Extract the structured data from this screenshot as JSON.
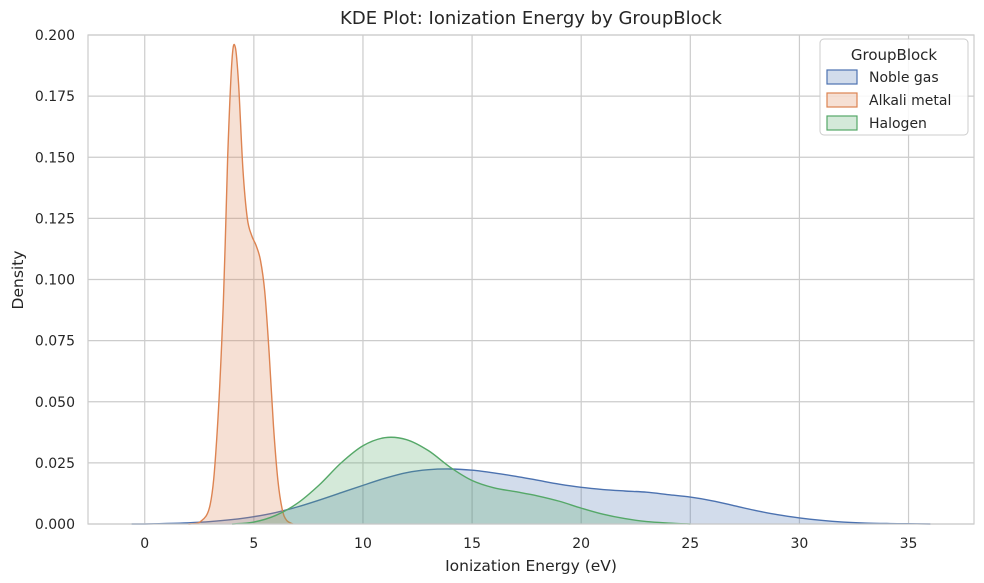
{
  "chart_data": {
    "type": "area",
    "title": "KDE Plot: Ionization Energy by GroupBlock",
    "xlabel": "Ionization Energy (eV)",
    "ylabel": "Density",
    "xlim": [
      -2.6,
      38
    ],
    "ylim": [
      0,
      0.2
    ],
    "xticks": [
      0,
      5,
      10,
      15,
      20,
      25,
      30,
      35
    ],
    "yticks": [
      0,
      0.025,
      0.05,
      0.075,
      0.1,
      0.125,
      0.15,
      0.175,
      0.2
    ],
    "xtick_labels": [
      "0",
      "5",
      "10",
      "15",
      "20",
      "25",
      "30",
      "35"
    ],
    "ytick_labels": [
      "0.000",
      "0.025",
      "0.050",
      "0.075",
      "0.100",
      "0.125",
      "0.150",
      "0.175",
      "0.200"
    ],
    "grid": true,
    "legend": {
      "title": "GroupBlock",
      "placement": "top-right"
    },
    "series": [
      {
        "name": "Noble gas",
        "color": "#4c72b0",
        "x": [
          -0.6,
          0,
          1,
          2,
          3,
          4,
          5,
          6,
          7,
          8,
          9,
          10,
          11,
          12,
          13,
          14,
          15,
          16,
          17,
          18,
          19,
          20,
          21,
          22,
          23,
          24,
          25,
          26,
          27,
          28,
          29,
          30,
          31,
          32,
          33,
          34,
          35,
          36
        ],
        "y": [
          0.0,
          0.0,
          0.0002,
          0.0005,
          0.001,
          0.0018,
          0.003,
          0.0047,
          0.007,
          0.0098,
          0.0128,
          0.0158,
          0.0187,
          0.021,
          0.0222,
          0.0225,
          0.022,
          0.0209,
          0.0195,
          0.0179,
          0.0163,
          0.015,
          0.0141,
          0.0135,
          0.013,
          0.012,
          0.011,
          0.0095,
          0.0075,
          0.0055,
          0.0038,
          0.0025,
          0.0015,
          0.0008,
          0.0004,
          0.0002,
          0.0001,
          0.0
        ]
      },
      {
        "name": "Alkali metal",
        "color": "#dd8452",
        "x": [
          2.0,
          2.5,
          3.0,
          3.3,
          3.6,
          3.8,
          4.0,
          4.15,
          4.3,
          4.5,
          4.7,
          4.9,
          5.1,
          5.3,
          5.5,
          5.7,
          5.9,
          6.1,
          6.3,
          6.5,
          6.8
        ],
        "y": [
          0.0,
          0.0006,
          0.008,
          0.035,
          0.09,
          0.15,
          0.19,
          0.195,
          0.18,
          0.145,
          0.125,
          0.118,
          0.114,
          0.108,
          0.095,
          0.07,
          0.04,
          0.018,
          0.006,
          0.0015,
          0.0
        ]
      },
      {
        "name": "Halogen",
        "color": "#55a868",
        "x": [
          4,
          5,
          6,
          7,
          8,
          9,
          10,
          11,
          12,
          13,
          14,
          15,
          16,
          17,
          18,
          19,
          20,
          21,
          22,
          23,
          24,
          25
        ],
        "y": [
          0.0,
          0.0008,
          0.0035,
          0.0085,
          0.016,
          0.025,
          0.032,
          0.0353,
          0.0345,
          0.03,
          0.0232,
          0.0178,
          0.0148,
          0.0132,
          0.0115,
          0.0093,
          0.0065,
          0.004,
          0.0022,
          0.001,
          0.0004,
          0.0
        ]
      }
    ]
  }
}
